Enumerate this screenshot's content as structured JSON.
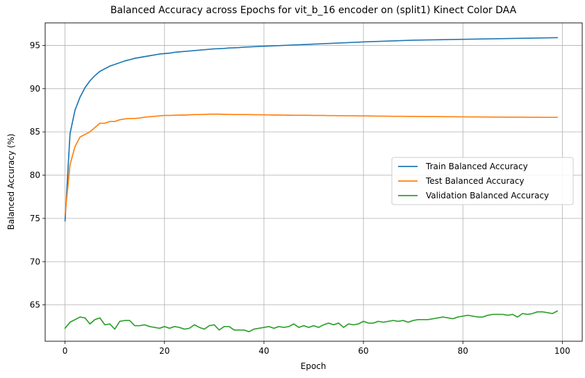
{
  "chart_data": {
    "type": "line",
    "title": "Balanced Accuracy across Epochs for vit_b_16 encoder on (split1) Kinect Color DAA",
    "xlabel": "Epoch",
    "ylabel": "Balanced Accuracy (%)",
    "xlim": [
      -4,
      104
    ],
    "ylim": [
      60.8,
      97.6
    ],
    "xticks": [
      0,
      20,
      40,
      60,
      80,
      100
    ],
    "yticks": [
      65,
      70,
      75,
      80,
      85,
      90,
      95
    ],
    "grid": true,
    "legend_position": "center-right",
    "x": [
      0,
      1,
      2,
      3,
      4,
      5,
      6,
      7,
      8,
      9,
      10,
      11,
      12,
      13,
      14,
      15,
      16,
      17,
      18,
      19,
      20,
      21,
      22,
      23,
      24,
      25,
      26,
      27,
      28,
      29,
      30,
      31,
      32,
      33,
      34,
      35,
      36,
      37,
      38,
      39,
      40,
      41,
      42,
      43,
      44,
      45,
      46,
      47,
      48,
      49,
      50,
      51,
      52,
      53,
      54,
      55,
      56,
      57,
      58,
      59,
      60,
      61,
      62,
      63,
      64,
      65,
      66,
      67,
      68,
      69,
      70,
      71,
      72,
      73,
      74,
      75,
      76,
      77,
      78,
      79,
      80,
      81,
      82,
      83,
      84,
      85,
      86,
      87,
      88,
      89,
      90,
      91,
      92,
      93,
      94,
      95,
      96,
      97,
      98,
      99
    ],
    "series": [
      {
        "name": "Train Balanced Accuracy",
        "color": "#1f77b4",
        "values": [
          74.7,
          84.8,
          87.5,
          89.0,
          90.1,
          90.9,
          91.5,
          92.0,
          92.3,
          92.6,
          92.8,
          93.0,
          93.2,
          93.35,
          93.5,
          93.6,
          93.7,
          93.8,
          93.9,
          94.0,
          94.05,
          94.1,
          94.2,
          94.25,
          94.3,
          94.35,
          94.4,
          94.45,
          94.5,
          94.55,
          94.6,
          94.62,
          94.65,
          94.7,
          94.72,
          94.75,
          94.8,
          94.82,
          94.85,
          94.88,
          94.9,
          94.92,
          94.95,
          94.97,
          95.0,
          95.02,
          95.05,
          95.07,
          95.1,
          95.12,
          95.15,
          95.17,
          95.2,
          95.22,
          95.25,
          95.27,
          95.3,
          95.32,
          95.35,
          95.37,
          95.4,
          95.42,
          95.44,
          95.46,
          95.48,
          95.5,
          95.52,
          95.54,
          95.56,
          95.58,
          95.6,
          95.61,
          95.62,
          95.63,
          95.64,
          95.65,
          95.66,
          95.67,
          95.68,
          95.69,
          95.7,
          95.71,
          95.72,
          95.73,
          95.74,
          95.75,
          95.76,
          95.77,
          95.78,
          95.79,
          95.8,
          95.81,
          95.82,
          95.83,
          95.84,
          95.85,
          95.86,
          95.87,
          95.88,
          95.89
        ]
      },
      {
        "name": "Test Balanced Accuracy",
        "color": "#ff7f0e",
        "values": [
          75.4,
          81.2,
          83.3,
          84.4,
          84.7,
          85.0,
          85.5,
          86.0,
          86.0,
          86.2,
          86.2,
          86.4,
          86.5,
          86.55,
          86.55,
          86.6,
          86.7,
          86.75,
          86.8,
          86.85,
          86.9,
          86.9,
          86.92,
          86.95,
          86.95,
          86.97,
          87.0,
          87.0,
          87.02,
          87.05,
          87.05,
          87.05,
          87.03,
          87.02,
          87.0,
          87.0,
          87.0,
          87.0,
          86.98,
          86.98,
          86.97,
          86.96,
          86.95,
          86.95,
          86.94,
          86.93,
          86.92,
          86.92,
          86.92,
          86.92,
          86.9,
          86.9,
          86.9,
          86.88,
          86.88,
          86.87,
          86.87,
          86.86,
          86.86,
          86.85,
          86.85,
          86.84,
          86.83,
          86.82,
          86.82,
          86.81,
          86.8,
          86.8,
          86.8,
          86.79,
          86.79,
          86.78,
          86.78,
          86.77,
          86.77,
          86.76,
          86.76,
          86.75,
          86.75,
          86.74,
          86.74,
          86.73,
          86.73,
          86.73,
          86.72,
          86.72,
          86.71,
          86.71,
          86.71,
          86.7,
          86.7,
          86.7,
          86.7,
          86.69,
          86.69,
          86.69,
          86.68,
          86.68,
          86.68,
          86.68
        ]
      },
      {
        "name": "Validation Balanced Accuracy",
        "color": "#2ca02c",
        "values": [
          62.3,
          63.0,
          63.3,
          63.6,
          63.5,
          62.8,
          63.3,
          63.5,
          62.7,
          62.8,
          62.2,
          63.1,
          63.2,
          63.2,
          62.6,
          62.6,
          62.7,
          62.5,
          62.4,
          62.3,
          62.5,
          62.3,
          62.5,
          62.4,
          62.2,
          62.3,
          62.7,
          62.4,
          62.2,
          62.6,
          62.7,
          62.1,
          62.5,
          62.5,
          62.1,
          62.1,
          62.1,
          61.9,
          62.2,
          62.3,
          62.4,
          62.5,
          62.3,
          62.5,
          62.4,
          62.5,
          62.8,
          62.4,
          62.6,
          62.4,
          62.6,
          62.4,
          62.7,
          62.9,
          62.7,
          62.9,
          62.4,
          62.8,
          62.7,
          62.8,
          63.1,
          62.9,
          62.9,
          63.1,
          63.0,
          63.1,
          63.2,
          63.1,
          63.2,
          63.0,
          63.2,
          63.3,
          63.3,
          63.3,
          63.4,
          63.5,
          63.6,
          63.5,
          63.4,
          63.6,
          63.7,
          63.8,
          63.7,
          63.6,
          63.6,
          63.8,
          63.9,
          63.9,
          63.9,
          63.8,
          63.9,
          63.6,
          64.0,
          63.9,
          64.0,
          64.2,
          64.2,
          64.1,
          64.0,
          64.3
        ]
      }
    ]
  }
}
